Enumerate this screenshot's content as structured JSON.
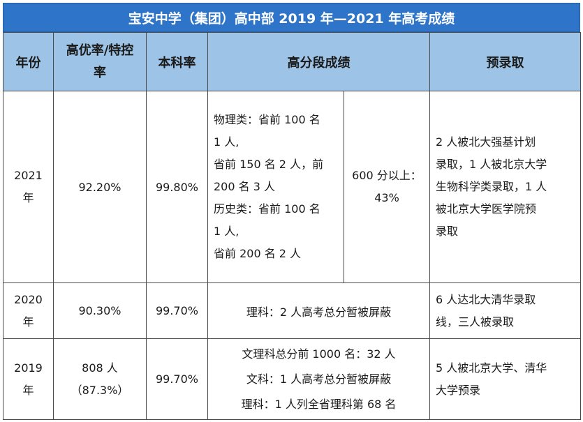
{
  "title": "宝安中学（集团）高中部 2019 年—2021 年高考成绩",
  "headers": {
    "year": "年份",
    "excellent_rate": [
      "高优率/特控",
      "率"
    ],
    "undergrad_rate": "本科率",
    "high_scores": "高分段成绩",
    "pre_admission": "预录取"
  },
  "rows": {
    "r2021": {
      "year": [
        "2021",
        "年"
      ],
      "excellent_rate": "92.20%",
      "undergrad_rate": "99.80%",
      "high_scores_left": [
        "物理类：省前 100 名",
        "1 人,",
        "省前 150 名 2 人，前",
        "200 名 3 人",
        "历史类：省前 100 名",
        "1 人,",
        "省前 200 名 2 人"
      ],
      "high_scores_right": [
        "600 分以上：",
        "43%"
      ],
      "pre_admission": [
        "2 人被北大强基计划",
        "录取，1 人被北京大学",
        "生物科学类录取，1 人",
        "被北京大学医学院预",
        "录取"
      ]
    },
    "r2020": {
      "year": [
        "2020",
        "年"
      ],
      "excellent_rate": "90.30%",
      "undergrad_rate": "99.70%",
      "high_scores": "理科：2 人高考总分暂被屏蔽",
      "pre_admission": [
        "6 人达北大清华录取",
        "线，三人被录取"
      ]
    },
    "r2019": {
      "year": [
        "2019",
        "年"
      ],
      "excellent_rate": [
        "808 人",
        "（87.3%）"
      ],
      "undergrad_rate": "99.70%",
      "high_scores": [
        "文理科总分前 1000 名：32 人",
        "文科：1 人高考总分暂被屏蔽",
        "理科：1 人列全省理科第 68 名"
      ],
      "pre_admission": [
        "5 人被北京大学、清华",
        "大学预录"
      ]
    }
  },
  "colors": {
    "title_bg": "#2e75c9",
    "header_bg": "#9dc3e6"
  }
}
